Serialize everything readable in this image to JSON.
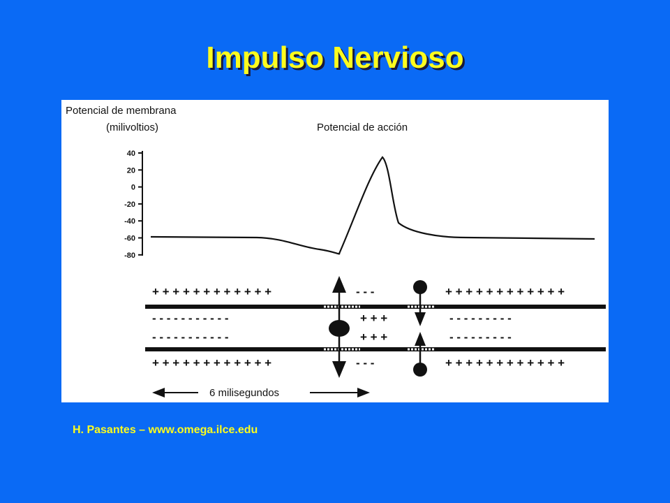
{
  "slide": {
    "title": "Impulso Nervioso",
    "credit": "H. Pasantes – www.omega.ilce.edu",
    "colors": {
      "background": "#0a6af5",
      "title": "#fcfc1e",
      "panel": "#ffffff"
    }
  },
  "figure": {
    "ylabel_line1": "Potencial de membrana",
    "ylabel_line2": "(milivoltios)",
    "trace_label": "Potencial de acción",
    "y_ticks": [
      "40",
      "20",
      "0",
      "-20",
      "-40",
      "-60",
      "-80"
    ],
    "duration_label": "6 milisegundos",
    "axon": {
      "outer_top_charges": "+ + + + + + + + + + + +",
      "inner_top_charges": "- - - - - - - - - - -",
      "inner_bottom_charges": "- - - - - - - - - - -",
      "outer_bottom_charges": "+ + + + + + + + + + + +",
      "depolarized_outer": "- - -",
      "depolarized_inner": "+ + +",
      "right_outer_top": "+ + + + + + + + + + + +",
      "right_inner_top": "- - - - - - - - -",
      "right_inner_bottom": "- - - - - - - - -",
      "right_outer_bottom": "+ + + + + + + + + + + +"
    }
  }
}
